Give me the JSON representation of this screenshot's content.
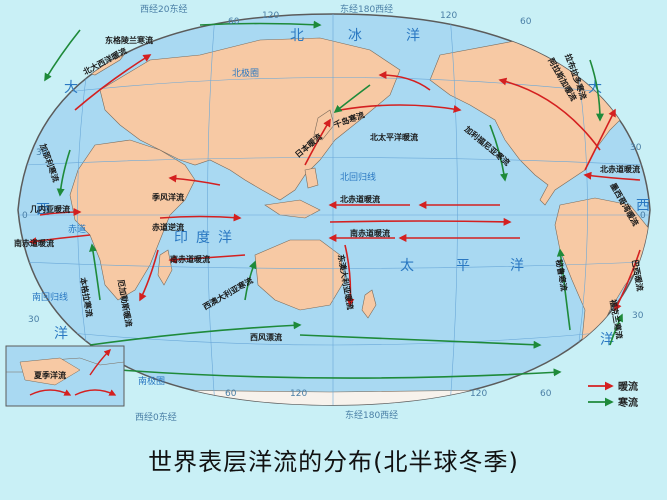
{
  "title": "世界表层洋流的分布(北半球冬季)",
  "legend": {
    "warm": "暖流",
    "cold": "寒流",
    "warm_color": "#d42020",
    "cold_color": "#1e8a3a"
  },
  "colors": {
    "ocean": "#a9d9f2",
    "land": "#f7c9a4",
    "page": "#c9f0f6",
    "grid": "#6aa8d8",
    "frame": "#5b5b5b"
  },
  "ticks": {
    "top": [
      "西经20东经",
      "60",
      "120",
      "东经180西经",
      "120",
      "60"
    ],
    "bottom": [
      "西经0东经",
      "60",
      "120",
      "东经180西经",
      "120",
      "60"
    ],
    "left": [
      "30",
      "0",
      "30"
    ],
    "right": [
      "30",
      "0",
      "30"
    ]
  },
  "ocean_labels": [
    "大",
    "西",
    "洋",
    "北",
    "冰",
    "洋",
    "印",
    "度",
    "洋",
    "太",
    "平",
    "洋",
    "大",
    "西",
    "洋"
  ],
  "lat_labels": {
    "arctic": "北极圈",
    "tropic_n": "北回归线",
    "equator": "赤道",
    "tropic_s": "南回归线",
    "antarctic": "南极圈"
  },
  "currents": {
    "labrador": "拉布拉多寒流",
    "east_greenland": "东格陵兰寒流",
    "north_atlantic": "北大西洋暖流",
    "canary": "加那利寒流",
    "n_equatorial_atl": "北赤道暖流",
    "s_equatorial_atl": "南赤道暖流",
    "guinea": "几内亚暖流",
    "benguela": "本格拉寒流",
    "agulhas": "厄加勒斯暖流",
    "monsoon": "季风洋流",
    "countercurrent": "赤道逆流",
    "s_equatorial_ind": "南赤道暖流",
    "w_australia": "西澳大利亚寒流",
    "e_australia": "东澳大利亚暖流",
    "kuroshio": "日本暖流",
    "oyashio": "千岛寒流",
    "n_pacific": "北太平洋暖流",
    "california": "加利福尼亚寒流",
    "alaska": "阿拉斯加暖流",
    "n_equatorial_pac": "北赤道暖流",
    "s_equatorial_pac": "南赤道暖流",
    "peru": "秘鲁寒流",
    "brazil": "巴西暖流",
    "falkland": "福克兰寒流",
    "westerly_drift": "西风漂流",
    "gulf_stream": "墨西哥湾暖流",
    "inset": "夏季洋流"
  }
}
